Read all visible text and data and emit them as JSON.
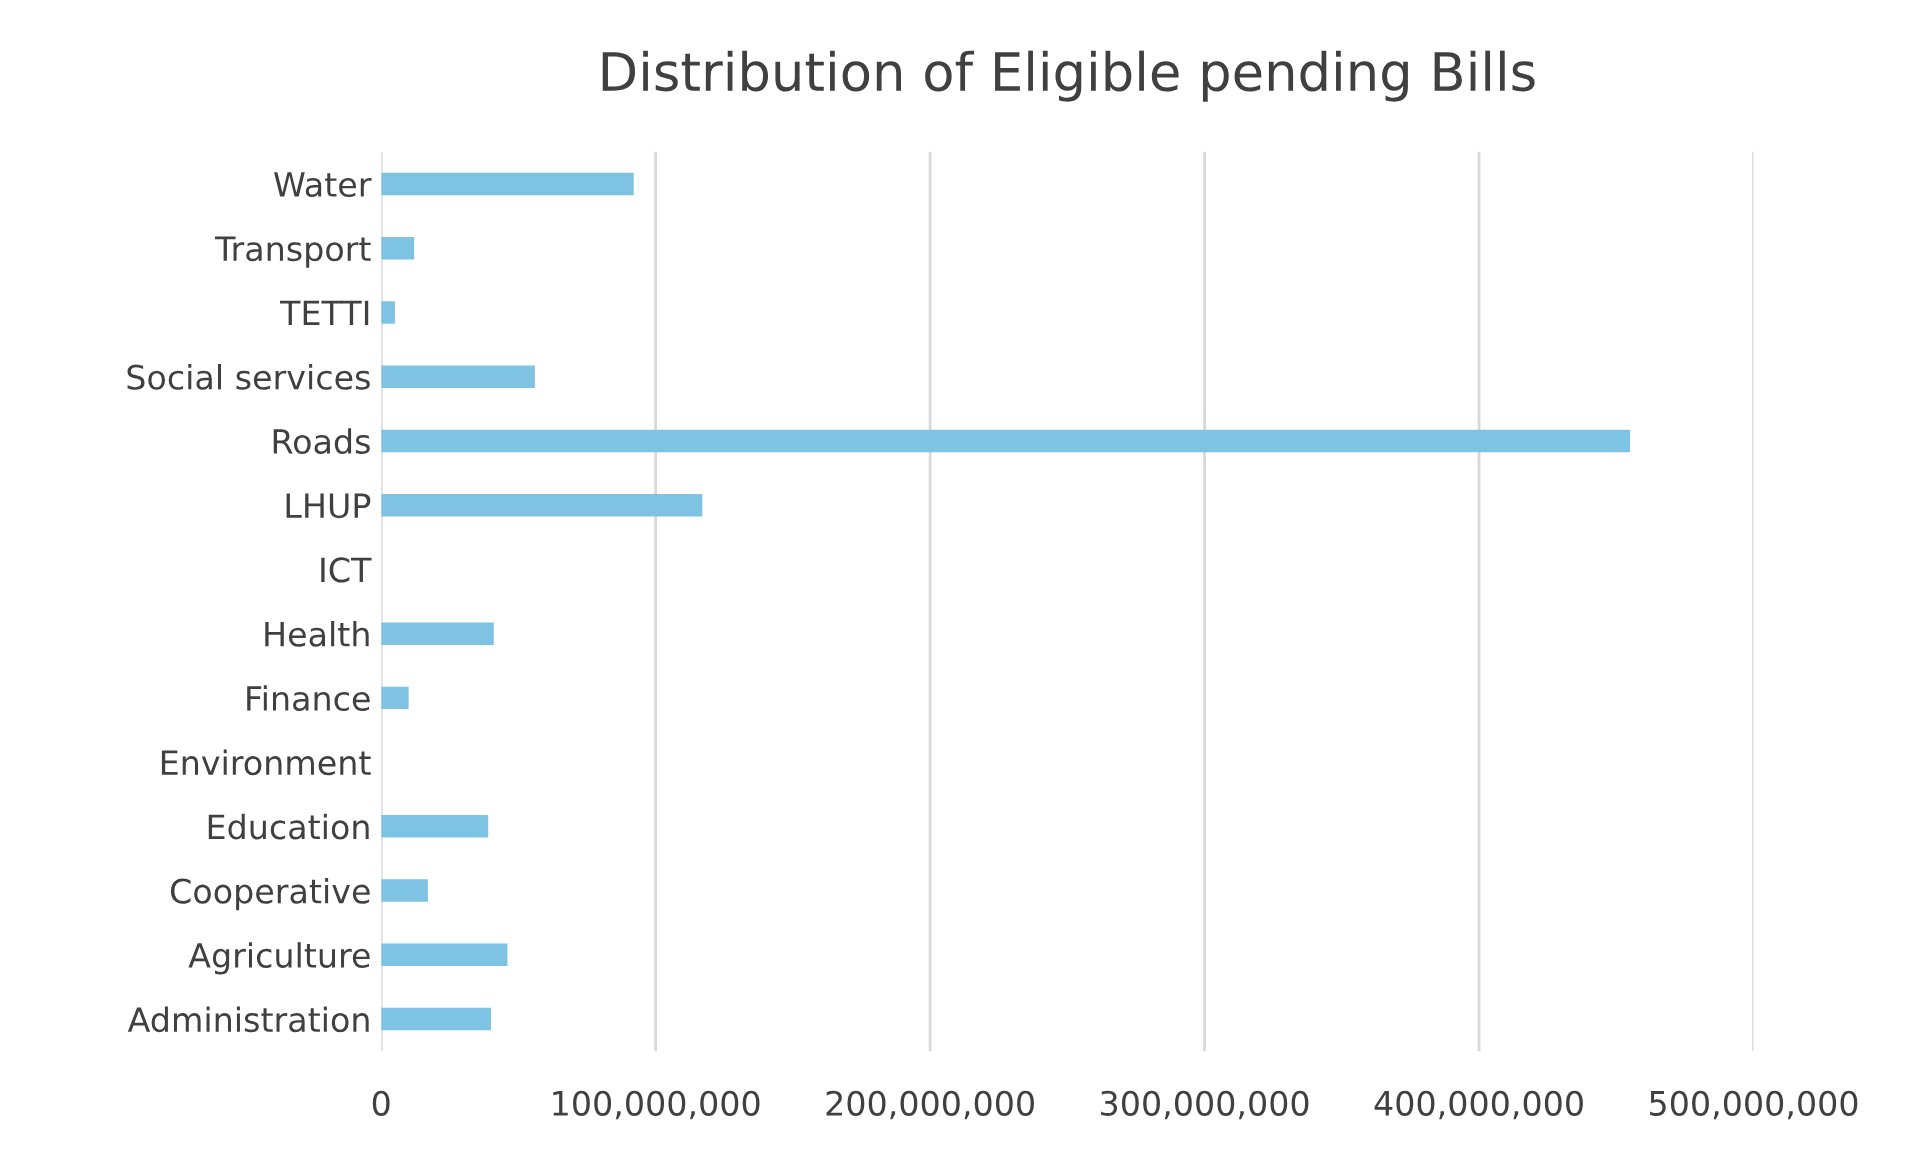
{
  "chart_data": {
    "type": "bar",
    "orientation": "horizontal",
    "title": "Distribution of Eligible pending Bills",
    "categories": [
      "Water",
      "Transport",
      "TETTI",
      "Social services",
      "Roads",
      "LHUP",
      "ICT",
      "Health",
      "Finance",
      "Environment",
      "Education",
      "Cooperative",
      "Agriculture",
      "Administration"
    ],
    "values": [
      92000000,
      12000000,
      5000000,
      56000000,
      455000000,
      117000000,
      0,
      41000000,
      10000000,
      0,
      39000000,
      17000000,
      46000000,
      40000000
    ],
    "color": "#7ec3e3",
    "xlim": [
      0,
      500000000
    ],
    "xticks": [
      {
        "value": 0,
        "label": "0"
      },
      {
        "value": 100000000,
        "label": "100,000,000"
      },
      {
        "value": 200000000,
        "label": "200,000,000"
      },
      {
        "value": 300000000,
        "label": "300,000,000"
      },
      {
        "value": 400000000,
        "label": "400,000,000"
      },
      {
        "value": 500000000,
        "label": "500,000,000"
      }
    ],
    "grid": "x",
    "legend": false
  }
}
